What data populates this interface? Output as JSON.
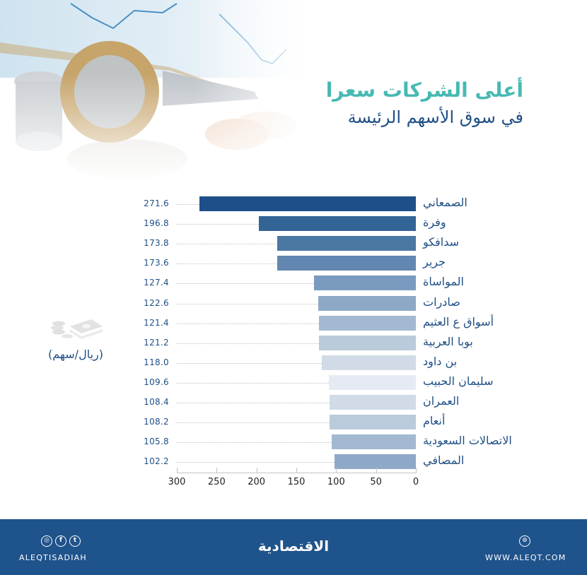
{
  "title": {
    "main": "أعلى الشركات سعرا",
    "sub": "في سوق الأسهم الرئيسة"
  },
  "unit": {
    "icon": "money-stack-icon",
    "label": "(ريال/سهم)"
  },
  "chart_data": {
    "type": "bar",
    "orientation": "horizontal",
    "direction": "right-to-left",
    "title": "أعلى الشركات سعرا في سوق الأسهم الرئيسة",
    "xlabel": "",
    "ylabel": "",
    "unit": "ريال/سهم",
    "xlim": [
      0,
      300
    ],
    "xticks": [
      300,
      250,
      200,
      150,
      100,
      50,
      0
    ],
    "grid": false,
    "legend": null,
    "categories": [
      "الصمعاني",
      "وفرة",
      "سدافكو",
      "جرير",
      "المواساة",
      "صادرات",
      "أسواق ع العثيم",
      "بوبا العربية",
      "بن داود",
      "سليمان الحبيب",
      "العمران",
      "أنعام",
      "الاتصالات السعودية",
      "المصافي"
    ],
    "values": [
      271.6,
      196.8,
      173.8,
      173.6,
      127.4,
      122.6,
      121.4,
      121.2,
      118.0,
      109.6,
      108.4,
      108.2,
      105.8,
      102.2
    ],
    "value_labels": [
      "271.6",
      "196.8",
      "173.8",
      "173.6",
      "127.4",
      "122.6",
      "121.4",
      "121.2",
      "118.0",
      "109.6",
      "108.4",
      "108.2",
      "105.8",
      "102.2"
    ],
    "colors": [
      "#1f4f88",
      "#336496",
      "#4b77a3",
      "#6287b0",
      "#7a9ac0",
      "#8ea9c7",
      "#a3b9d2",
      "#bacbdc",
      "#d0dbe7",
      "#e6ebf3",
      "#d0dbe7",
      "#bacbdc",
      "#a3b9d2",
      "#8ea9c7"
    ]
  },
  "footer": {
    "social_icons": [
      "instagram-icon",
      "facebook-icon",
      "twitter-icon"
    ],
    "social_glyphs": [
      "◎",
      "f",
      "t"
    ],
    "handle": "ALEQTISADIAH",
    "brand": "الاقتصادية",
    "web_glyph": "⊛",
    "website": "WWW.ALEQT.COM"
  }
}
